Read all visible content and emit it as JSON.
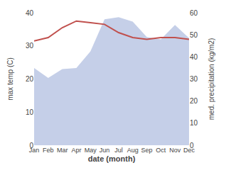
{
  "chart_data": {
    "type": "line",
    "xlabel": "date (month)",
    "ylabel": "max temp (C)",
    "y2label": "med. precipitation (kg/m2)",
    "categories": [
      "Jan",
      "Feb",
      "Mar",
      "Apr",
      "May",
      "Jun",
      "Jul",
      "Aug",
      "Sep",
      "Oct",
      "Nov",
      "Dec"
    ],
    "series": [
      {
        "type": "area",
        "axis": "y2",
        "color": "#c5cfe8",
        "values": [
          35.0,
          30.5,
          34.5,
          35.0,
          42.5,
          57.0,
          58.0,
          56.0,
          49.0,
          48.0,
          54.5,
          48.5
        ]
      },
      {
        "type": "line",
        "color": "#c0504d",
        "values": [
          31.5,
          32.5,
          35.5,
          37.5,
          37.0,
          36.5,
          34.0,
          32.5,
          32.0,
          32.5,
          32.5,
          32.0
        ]
      }
    ],
    "ylim": [
      0,
      40
    ],
    "yticks": [
      0,
      10,
      20,
      30,
      40
    ],
    "y2lim": [
      0,
      60
    ],
    "y2ticks": [
      0,
      10,
      20,
      30,
      40,
      50,
      60
    ],
    "grid": false
  }
}
